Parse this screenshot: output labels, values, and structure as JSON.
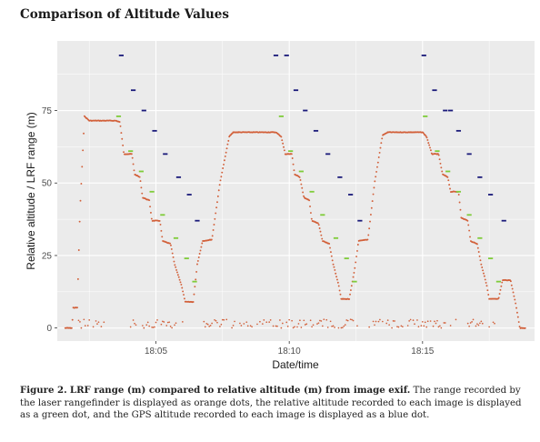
{
  "page": {
    "title": "Comparison of Altitude Values",
    "caption_label": "Figure 2.",
    "caption_bold": "LRF range (m) compared to relative altitude (m) from image exif.",
    "caption_rest": "The range recorded by the laser rangefinder is displayed as orange dots, the relative altitude recorded to each image is displayed as a green dot, and the GPS altitude recorded to each image is displayed as a blue dot."
  },
  "colors": {
    "panel_bg": "#ebebeb",
    "grid": "#ffffff",
    "lrf": "#d2603a",
    "relative": "#7fcc3a",
    "gps": "#1a1a7a"
  },
  "chart_data": {
    "type": "scatter",
    "xlabel": "Date/time",
    "ylabel": "Relative altitude / LRF range (m)",
    "x_unit": "minutes after 18:00",
    "xlim": [
      1.3,
      19.2
    ],
    "ylim": [
      -4.5,
      99
    ],
    "x_ticks": [
      {
        "value": 5,
        "label": "18:05"
      },
      {
        "value": 10,
        "label": "18:10"
      },
      {
        "value": 15,
        "label": "18:15"
      }
    ],
    "y_ticks": [
      {
        "value": 0,
        "label": "0"
      },
      {
        "value": 25,
        "label": "25"
      },
      {
        "value": 50,
        "label": "50"
      },
      {
        "value": 75,
        "label": "75"
      }
    ],
    "grid": true,
    "legend": "none",
    "series": [
      {
        "key": "lrf",
        "kind": "trace",
        "profile": [
          [
            1.6,
            0
          ],
          [
            1.85,
            0
          ],
          [
            1.9,
            7
          ],
          [
            2.05,
            7
          ],
          [
            2.15,
            40
          ],
          [
            2.32,
            73
          ],
          [
            2.5,
            71.5
          ],
          [
            3.5,
            71.5
          ],
          [
            3.65,
            71
          ],
          [
            3.8,
            60
          ],
          [
            4.1,
            60
          ],
          [
            4.2,
            53
          ],
          [
            4.4,
            52
          ],
          [
            4.5,
            45
          ],
          [
            4.75,
            44
          ],
          [
            4.85,
            37
          ],
          [
            5.15,
            37
          ],
          [
            5.25,
            30
          ],
          [
            5.55,
            29
          ],
          [
            5.7,
            22
          ],
          [
            5.95,
            15
          ],
          [
            6.1,
            9
          ],
          [
            6.4,
            9
          ],
          [
            6.55,
            22
          ],
          [
            6.75,
            30
          ],
          [
            7.1,
            30.5
          ],
          [
            7.4,
            50
          ],
          [
            7.75,
            66
          ],
          [
            7.9,
            67.5
          ],
          [
            9.5,
            67.5
          ],
          [
            9.7,
            66
          ],
          [
            9.85,
            60
          ],
          [
            10.1,
            60
          ],
          [
            10.2,
            53
          ],
          [
            10.4,
            52
          ],
          [
            10.55,
            45
          ],
          [
            10.75,
            44
          ],
          [
            10.85,
            37
          ],
          [
            11.1,
            36
          ],
          [
            11.25,
            30
          ],
          [
            11.5,
            29
          ],
          [
            11.65,
            22
          ],
          [
            11.85,
            15
          ],
          [
            11.95,
            10
          ],
          [
            12.25,
            10
          ],
          [
            12.45,
            20
          ],
          [
            12.6,
            30
          ],
          [
            12.95,
            30.5
          ],
          [
            13.2,
            50
          ],
          [
            13.5,
            66.5
          ],
          [
            13.7,
            67.5
          ],
          [
            15.0,
            67.5
          ],
          [
            15.15,
            66
          ],
          [
            15.35,
            60
          ],
          [
            15.6,
            60
          ],
          [
            15.75,
            53
          ],
          [
            15.95,
            52
          ],
          [
            16.05,
            47
          ],
          [
            16.35,
            47
          ],
          [
            16.45,
            38
          ],
          [
            16.7,
            37
          ],
          [
            16.8,
            30
          ],
          [
            17.05,
            29
          ],
          [
            17.2,
            22
          ],
          [
            17.4,
            15
          ],
          [
            17.5,
            10
          ],
          [
            17.85,
            10
          ],
          [
            18.0,
            16.5
          ],
          [
            18.3,
            16.5
          ],
          [
            18.5,
            8
          ],
          [
            18.65,
            0
          ],
          [
            18.85,
            0
          ]
        ],
        "ground_noise_ranges": [
          [
            2.1,
            3.1
          ],
          [
            4.0,
            6.0
          ],
          [
            6.8,
            12.6
          ],
          [
            13.0,
            17.8
          ]
        ],
        "ground_noise_level": [
          0,
          3
        ],
        "sample_step": 0.03
      },
      {
        "key": "relative",
        "kind": "points",
        "points": [
          [
            3.6,
            73
          ],
          [
            4.05,
            61
          ],
          [
            4.45,
            54
          ],
          [
            4.85,
            47
          ],
          [
            5.25,
            39
          ],
          [
            5.75,
            31
          ],
          [
            6.15,
            24
          ],
          [
            6.45,
            16
          ],
          [
            9.7,
            73
          ],
          [
            10.05,
            61
          ],
          [
            10.45,
            54
          ],
          [
            10.85,
            47
          ],
          [
            11.25,
            39
          ],
          [
            11.75,
            31
          ],
          [
            12.15,
            24
          ],
          [
            12.45,
            16
          ],
          [
            15.1,
            73
          ],
          [
            15.55,
            61
          ],
          [
            15.95,
            54
          ],
          [
            16.35,
            47
          ],
          [
            16.75,
            39
          ],
          [
            17.15,
            31
          ],
          [
            17.55,
            24
          ],
          [
            17.85,
            16
          ]
        ]
      },
      {
        "key": "gps",
        "kind": "points",
        "points": [
          [
            3.7,
            94
          ],
          [
            4.15,
            82
          ],
          [
            4.55,
            75
          ],
          [
            4.95,
            68
          ],
          [
            5.35,
            60
          ],
          [
            5.85,
            52
          ],
          [
            6.25,
            46
          ],
          [
            6.55,
            37
          ],
          [
            9.5,
            94
          ],
          [
            9.9,
            94
          ],
          [
            10.25,
            82
          ],
          [
            10.6,
            75
          ],
          [
            11.0,
            68
          ],
          [
            11.45,
            60
          ],
          [
            11.9,
            52
          ],
          [
            12.3,
            46
          ],
          [
            12.65,
            37
          ],
          [
            15.05,
            94
          ],
          [
            15.45,
            82
          ],
          [
            15.85,
            75
          ],
          [
            16.05,
            75
          ],
          [
            16.35,
            68
          ],
          [
            16.75,
            60
          ],
          [
            17.15,
            52
          ],
          [
            17.55,
            46
          ],
          [
            18.05,
            37
          ]
        ]
      }
    ]
  }
}
